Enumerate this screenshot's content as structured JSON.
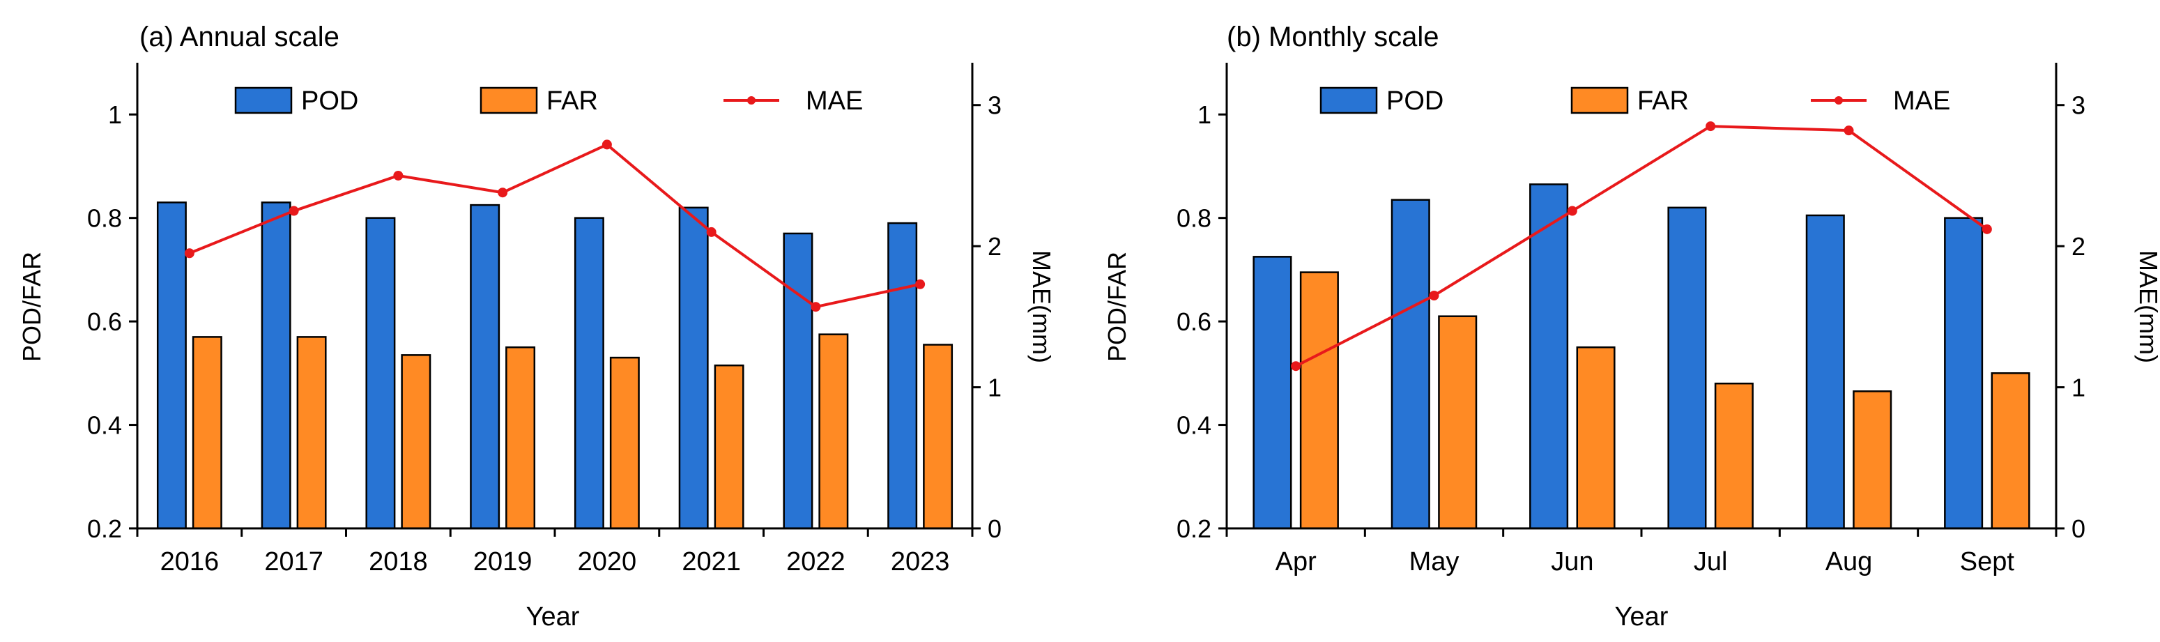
{
  "colors": {
    "pod": "#2874d4",
    "far": "#ff8a24",
    "mae": "#e8191b",
    "axis": "#000000"
  },
  "legend": {
    "pod": "POD",
    "far": "FAR",
    "mae": "MAE"
  },
  "chart_data": [
    {
      "type": "bar",
      "title": "(a) Annual scale",
      "xlabel": "Year",
      "ylabel": "POD/FAR",
      "y2label": "MAE(mm)",
      "ylim": [
        0.2,
        1.1
      ],
      "yticks": [
        0.2,
        0.4,
        0.6,
        0.8,
        1
      ],
      "ytick_labels": [
        "0.2",
        "0.4",
        "0.6",
        "0.8",
        "1"
      ],
      "y2lim": [
        0,
        3.3
      ],
      "y2ticks": [
        0,
        1,
        2,
        3
      ],
      "y2tick_labels": [
        "0",
        "1",
        "2",
        "3"
      ],
      "categories": [
        "2016",
        "2017",
        "2018",
        "2019",
        "2020",
        "2021",
        "2022",
        "2023"
      ],
      "series": [
        {
          "name": "POD",
          "kind": "bar",
          "axis": "left",
          "values": [
            0.83,
            0.83,
            0.8,
            0.825,
            0.8,
            0.82,
            0.77,
            0.79
          ]
        },
        {
          "name": "FAR",
          "kind": "bar",
          "axis": "left",
          "values": [
            0.57,
            0.57,
            0.535,
            0.55,
            0.53,
            0.515,
            0.575,
            0.555
          ]
        },
        {
          "name": "MAE",
          "kind": "line",
          "axis": "right",
          "values": [
            1.95,
            2.25,
            2.5,
            2.38,
            2.72,
            2.1,
            1.57,
            1.73
          ]
        }
      ]
    },
    {
      "type": "bar",
      "title": "(b) Monthly scale",
      "xlabel": "Year",
      "ylabel": "POD/FAR",
      "y2label": "MAE(mm)",
      "ylim": [
        0.2,
        1.1
      ],
      "yticks": [
        0.2,
        0.4,
        0.6,
        0.8,
        1
      ],
      "ytick_labels": [
        "0.2",
        "0.4",
        "0.6",
        "0.8",
        "1"
      ],
      "y2lim": [
        0,
        3.3
      ],
      "y2ticks": [
        0,
        1,
        2,
        3
      ],
      "y2tick_labels": [
        "0",
        "1",
        "2",
        "3"
      ],
      "categories": [
        "Apr",
        "May",
        "Jun",
        "Jul",
        "Aug",
        "Sept"
      ],
      "series": [
        {
          "name": "POD",
          "kind": "bar",
          "axis": "left",
          "values": [
            0.725,
            0.835,
            0.865,
            0.82,
            0.805,
            0.8
          ]
        },
        {
          "name": "FAR",
          "kind": "bar",
          "axis": "left",
          "values": [
            0.695,
            0.61,
            0.55,
            0.48,
            0.465,
            0.5
          ]
        },
        {
          "name": "MAE",
          "kind": "line",
          "axis": "right",
          "values": [
            1.15,
            1.65,
            2.25,
            2.85,
            2.82,
            2.12
          ]
        }
      ]
    }
  ]
}
